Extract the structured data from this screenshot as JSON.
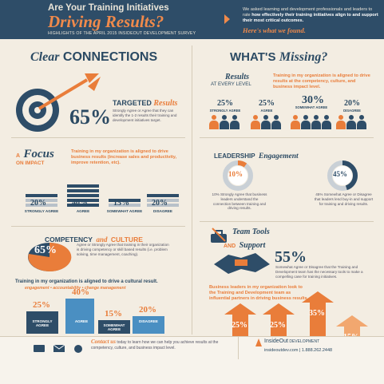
{
  "colors": {
    "navy": "#2e4d68",
    "orange": "#e97d3a",
    "cream": "#f3ede2",
    "gray": "#b8c1c9"
  },
  "header": {
    "line1": "Are Your Training Initiatives",
    "line2": "Driving Results?",
    "subtitle": "HIGHLIGHTS OF THE APRIL 2015 INSIDEOUT DEVELOPMENT SURVEY",
    "intro_a": "We asked learning and development professionals and leaders to rate ",
    "intro_b": "how effectively their training initiatives align to and support their most critical outcomes.",
    "found": "Here's what we found."
  },
  "clear": {
    "title_a": "Clear",
    "title_b": "CONNECTIONS",
    "targeted_a": "TARGETED",
    "targeted_b": "Results",
    "pct": "65%",
    "desc": "Strongly Agree or Agree that they can identify the 1-2 results their training and development initiatives target.",
    "icon": "target-arrow-icon"
  },
  "focus": {
    "title_a": "A",
    "title_b": "Focus",
    "title_c": "ON IMPACT",
    "statement": "Training in my organization is aligned to drive business results (increase sales and productivity, improve retention, etc).",
    "bars": [
      {
        "pct": "20%",
        "label": "STRONGLY AGREE",
        "value": 20
      },
      {
        "pct": "40%",
        "label": "AGREE",
        "value": 40
      },
      {
        "pct": "15%",
        "label": "SOMEWHAT AGREE",
        "value": 15
      },
      {
        "pct": "20%",
        "label": "DISAGREE",
        "value": 20
      }
    ]
  },
  "competency": {
    "title_a": "COMPETENCY",
    "title_b": "and",
    "title_c": "CULTURE",
    "pct": "65%",
    "desc": "Agree or Strongly Agree that training in their organization is driving competency or skill based results (i.e. problem solving, time management, coaching).",
    "statement": "Training in my organization is aligned to drive a cultural result.",
    "examples": "engagement • accountability • change management",
    "bars": [
      {
        "pct": "25%",
        "label": "STRONGLY AGREE",
        "value": 25
      },
      {
        "pct": "40%",
        "label": "AGREE",
        "value": 40
      },
      {
        "pct": "15%",
        "label": "SOMEWHAT AGREE",
        "value": 15
      },
      {
        "pct": "20%",
        "label": "DISAGREE",
        "value": 20
      }
    ]
  },
  "missing": {
    "title_a": "WHAT'S",
    "title_b": "Missing?",
    "results_a": "Results",
    "results_b": "AT EVERY LEVEL",
    "statement": "Training in my organization is aligned to drive results at the competency, culture, and business impact level.",
    "groups": [
      {
        "pct": "25%",
        "label": "STRONGLY AGREE",
        "value": 25
      },
      {
        "pct": "25%",
        "label": "AGREE",
        "value": 25
      },
      {
        "pct": "30%",
        "label": "SOMEWHAT AGREE",
        "value": 30
      },
      {
        "pct": "20%",
        "label": "DISAGREE",
        "value": 20
      }
    ]
  },
  "leadership": {
    "title_a": "LEADERSHIP",
    "title_b": "Engagement",
    "left_pct": "10%",
    "left_value": 10,
    "left_desc": "10% Strongly Agree that business leaders understand the connection between training and driving results.",
    "right_pct": "45%",
    "right_value": 45,
    "right_desc": "45% Somewhat Agree or Disagree that leaders lend buy-in and support for training and driving results."
  },
  "tools": {
    "title_a": "Team Tools",
    "title_b": "AND",
    "title_c": "Support",
    "pct": "55%",
    "desc": "Somewhat Agree or Disagree that the Training and Development team has the necessary tools to make a compelling case for training initiatives.",
    "statement": "Business leaders in my organization look to the Training and Development team as influential partners in driving business results.",
    "arrows": [
      {
        "pct": "25%",
        "label": "STRONGLY AGREE",
        "value": 25
      },
      {
        "pct": "25%",
        "label": "AGREE",
        "value": 25
      },
      {
        "pct": "35%",
        "label": "SOMEWHAT AGREE",
        "value": 35
      },
      {
        "pct": "15%",
        "label": "DISAGREE",
        "value": 15
      }
    ]
  },
  "footer": {
    "contact_a": "Contact us",
    "contact_b": " today to learn how we can help you achieve results at the competency, culture, and business impact level.",
    "brand_a": "InsideOut",
    "brand_b": " DEVELOPMENT",
    "contact_line": "insideoutdev.com | 1.888.262.2448"
  }
}
